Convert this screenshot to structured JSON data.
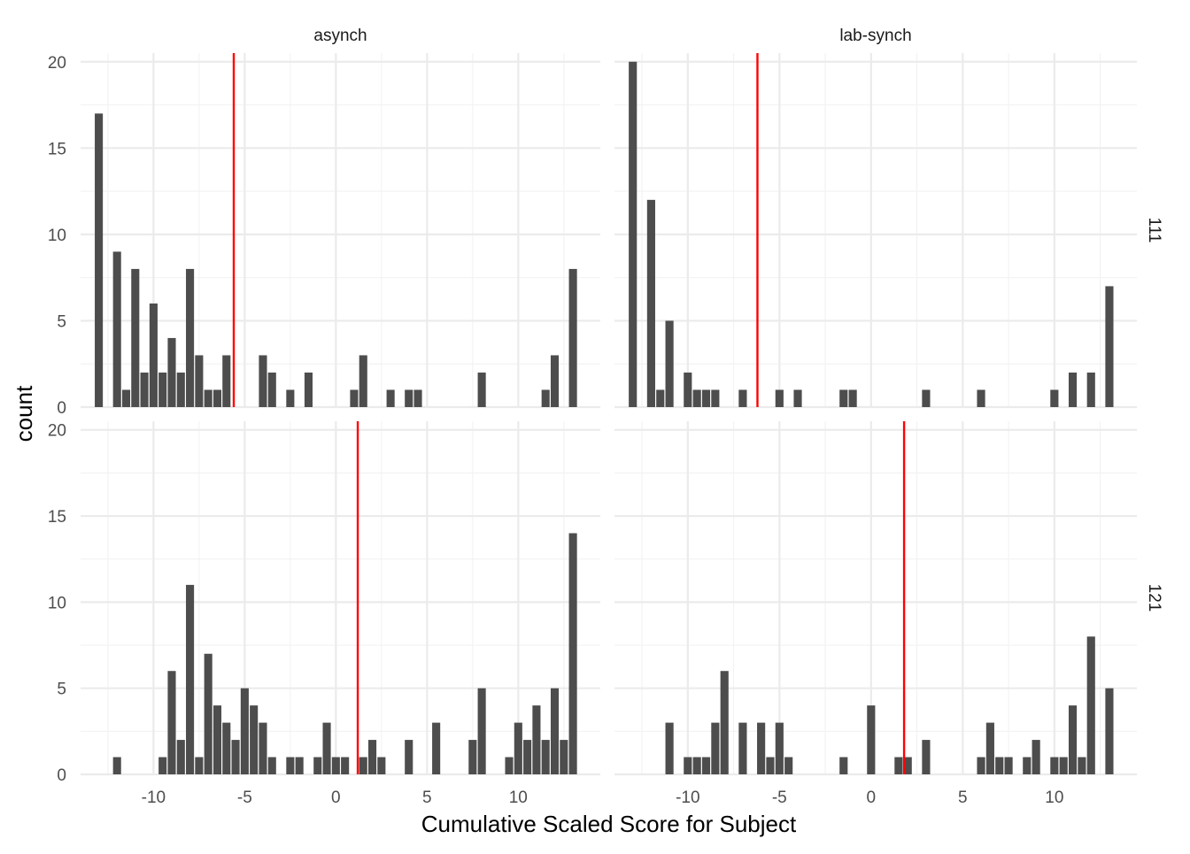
{
  "chart_data": {
    "type": "bar",
    "facet_cols": [
      "asynch",
      "lab-synch"
    ],
    "facet_rows": [
      "111",
      "121"
    ],
    "xlabel": "Cumulative Scaled Score for Subject",
    "ylabel": "count",
    "xlim": [
      -14,
      14.5
    ],
    "ylim": [
      0,
      20.5
    ],
    "x_ticks": [
      -10,
      -5,
      0,
      5,
      10
    ],
    "x_tick_labels": [
      "-10",
      "-5",
      "0",
      "5",
      "10"
    ],
    "y_ticks": [
      0,
      5,
      10,
      15,
      20
    ],
    "y_tick_labels": [
      "0",
      "5",
      "10",
      "15",
      "20"
    ],
    "bin_width": 0.5,
    "grid": true,
    "reference_line_color": "#ff0000",
    "bar_color": "#4d4d4d",
    "panels": [
      {
        "col": "asynch",
        "row": "111",
        "mean_line": -5.6,
        "bins": [
          {
            "x": -13,
            "count": 17
          },
          {
            "x": -12,
            "count": 9
          },
          {
            "x": -11.5,
            "count": 1
          },
          {
            "x": -11,
            "count": 8
          },
          {
            "x": -10.5,
            "count": 2
          },
          {
            "x": -10,
            "count": 6
          },
          {
            "x": -9.5,
            "count": 2
          },
          {
            "x": -9,
            "count": 4
          },
          {
            "x": -8.5,
            "count": 2
          },
          {
            "x": -8,
            "count": 8
          },
          {
            "x": -7.5,
            "count": 3
          },
          {
            "x": -7,
            "count": 1
          },
          {
            "x": -6.5,
            "count": 1
          },
          {
            "x": -6,
            "count": 3
          },
          {
            "x": -4,
            "count": 3
          },
          {
            "x": -3.5,
            "count": 2
          },
          {
            "x": -2.5,
            "count": 1
          },
          {
            "x": -1.5,
            "count": 2
          },
          {
            "x": 1,
            "count": 1
          },
          {
            "x": 1.5,
            "count": 3
          },
          {
            "x": 3,
            "count": 1
          },
          {
            "x": 4,
            "count": 1
          },
          {
            "x": 4.5,
            "count": 1
          },
          {
            "x": 8,
            "count": 2
          },
          {
            "x": 11.5,
            "count": 1
          },
          {
            "x": 12,
            "count": 3
          },
          {
            "x": 13,
            "count": 8
          }
        ]
      },
      {
        "col": "lab-synch",
        "row": "111",
        "mean_line": -6.2,
        "bins": [
          {
            "x": -13,
            "count": 20
          },
          {
            "x": -12,
            "count": 12
          },
          {
            "x": -11.5,
            "count": 1
          },
          {
            "x": -11,
            "count": 5
          },
          {
            "x": -10,
            "count": 2
          },
          {
            "x": -9.5,
            "count": 1
          },
          {
            "x": -9,
            "count": 1
          },
          {
            "x": -8.5,
            "count": 1
          },
          {
            "x": -7,
            "count": 1
          },
          {
            "x": -5,
            "count": 1
          },
          {
            "x": -4,
            "count": 1
          },
          {
            "x": -1.5,
            "count": 1
          },
          {
            "x": -1,
            "count": 1
          },
          {
            "x": 3,
            "count": 1
          },
          {
            "x": 6,
            "count": 1
          },
          {
            "x": 10,
            "count": 1
          },
          {
            "x": 11,
            "count": 2
          },
          {
            "x": 12,
            "count": 2
          },
          {
            "x": 13,
            "count": 7
          }
        ]
      },
      {
        "col": "asynch",
        "row": "121",
        "mean_line": 1.2,
        "bins": [
          {
            "x": -12,
            "count": 1
          },
          {
            "x": -9.5,
            "count": 1
          },
          {
            "x": -9,
            "count": 6
          },
          {
            "x": -8.5,
            "count": 2
          },
          {
            "x": -8,
            "count": 11
          },
          {
            "x": -7.5,
            "count": 1
          },
          {
            "x": -7,
            "count": 7
          },
          {
            "x": -6.5,
            "count": 4
          },
          {
            "x": -6,
            "count": 3
          },
          {
            "x": -5.5,
            "count": 2
          },
          {
            "x": -5,
            "count": 5
          },
          {
            "x": -4.5,
            "count": 4
          },
          {
            "x": -4,
            "count": 3
          },
          {
            "x": -3.5,
            "count": 1
          },
          {
            "x": -2.5,
            "count": 1
          },
          {
            "x": -2,
            "count": 1
          },
          {
            "x": -1,
            "count": 1
          },
          {
            "x": -0.5,
            "count": 3
          },
          {
            "x": 0,
            "count": 1
          },
          {
            "x": 0.5,
            "count": 1
          },
          {
            "x": 1.5,
            "count": 1
          },
          {
            "x": 2,
            "count": 2
          },
          {
            "x": 2.5,
            "count": 1
          },
          {
            "x": 4,
            "count": 2
          },
          {
            "x": 5.5,
            "count": 3
          },
          {
            "x": 7.5,
            "count": 2
          },
          {
            "x": 8,
            "count": 5
          },
          {
            "x": 9.5,
            "count": 1
          },
          {
            "x": 10,
            "count": 3
          },
          {
            "x": 10.5,
            "count": 2
          },
          {
            "x": 11,
            "count": 4
          },
          {
            "x": 11.5,
            "count": 2
          },
          {
            "x": 12,
            "count": 5
          },
          {
            "x": 12.5,
            "count": 2
          },
          {
            "x": 13,
            "count": 14
          }
        ]
      },
      {
        "col": "lab-synch",
        "row": "121",
        "mean_line": 1.8,
        "bins": [
          {
            "x": -11,
            "count": 3
          },
          {
            "x": -10,
            "count": 1
          },
          {
            "x": -9.5,
            "count": 1
          },
          {
            "x": -9,
            "count": 1
          },
          {
            "x": -8.5,
            "count": 3
          },
          {
            "x": -8,
            "count": 6
          },
          {
            "x": -7,
            "count": 3
          },
          {
            "x": -6,
            "count": 3
          },
          {
            "x": -5.5,
            "count": 1
          },
          {
            "x": -5,
            "count": 3
          },
          {
            "x": -4.5,
            "count": 1
          },
          {
            "x": -1.5,
            "count": 1
          },
          {
            "x": 0,
            "count": 4
          },
          {
            "x": 1.5,
            "count": 1
          },
          {
            "x": 2,
            "count": 1
          },
          {
            "x": 3,
            "count": 2
          },
          {
            "x": 6,
            "count": 1
          },
          {
            "x": 6.5,
            "count": 3
          },
          {
            "x": 7,
            "count": 1
          },
          {
            "x": 7.5,
            "count": 1
          },
          {
            "x": 8.5,
            "count": 1
          },
          {
            "x": 9,
            "count": 2
          },
          {
            "x": 10,
            "count": 1
          },
          {
            "x": 10.5,
            "count": 1
          },
          {
            "x": 11,
            "count": 4
          },
          {
            "x": 11.5,
            "count": 1
          },
          {
            "x": 12,
            "count": 8
          },
          {
            "x": 13,
            "count": 5
          }
        ]
      }
    ]
  }
}
